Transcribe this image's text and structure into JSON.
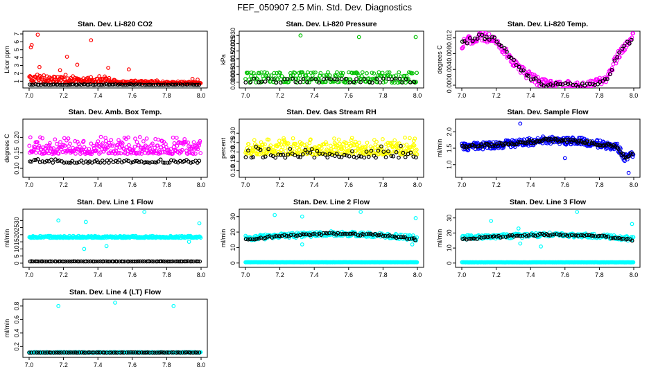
{
  "title": "FEF_050907  2.5 Min. Std. Dev. Diagnostics",
  "colors": {
    "red": "#ff0000",
    "green": "#00c000",
    "magenta": "#ff00ff",
    "yellow": "#ffff00",
    "blue": "#0000ff",
    "cyan": "#00ffff",
    "black": "#000000"
  },
  "chart_data": [
    {
      "type": "scatter",
      "title": "Stan. Dev. Li-820 CO2",
      "ylabel": "Licor ppm",
      "xlim": [
        7.0,
        8.0
      ],
      "xticks": [
        "7.0",
        "7.2",
        "7.4",
        "7.6",
        "7.8",
        "8.0"
      ],
      "ylim": [
        0.5,
        7.0
      ],
      "yticks": [
        "1",
        "2",
        "3",
        "4",
        "5",
        "6",
        "7"
      ],
      "series": [
        {
          "name": "primary",
          "color": "#ff0000",
          "x_range": [
            7.0,
            8.0
          ],
          "points": 260,
          "base": [
            1.0,
            1.0,
            0.8,
            0.75
          ],
          "spread": [
            1.1,
            0.8,
            0.35,
            0.3
          ],
          "outliers": [
            [
              7.01,
              5.3
            ],
            [
              7.015,
              5.6
            ],
            [
              7.05,
              6.9
            ],
            [
              7.06,
              2.8
            ],
            [
              7.22,
              4.1
            ],
            [
              7.18,
              2.4
            ],
            [
              7.36,
              6.2
            ],
            [
              7.28,
              3.1
            ],
            [
              7.46,
              2.7
            ],
            [
              7.58,
              2.5
            ],
            [
              7.95,
              1.3
            ],
            [
              7.98,
              1.2
            ]
          ]
        },
        {
          "name": "reference",
          "color": "#000000",
          "x_range": [
            7.0,
            8.0
          ],
          "points": 90,
          "base": [
            0.55,
            0.55,
            0.55,
            0.55
          ],
          "spread": [
            0.08,
            0.08,
            0.08,
            0.08
          ],
          "outliers": []
        }
      ]
    },
    {
      "type": "scatter",
      "title": "Stan. Dev. Li-820 Pressure",
      "ylabel": "kPa",
      "xlim": [
        7.0,
        8.0
      ],
      "xticks": [
        "7.0",
        "7.2",
        "7.4",
        "7.6",
        "7.8",
        "8.0"
      ],
      "ylim": [
        -0.002,
        0.031
      ],
      "yticks": [
        "0.000",
        "0.005",
        "0.010",
        "0.015",
        "0.020",
        "0.025",
        "0.030"
      ],
      "series": [
        {
          "name": "primary",
          "color": "#00c000",
          "x_range": [
            7.0,
            8.0
          ],
          "points": 200,
          "levels": [
            0.0,
            0.002,
            0.004,
            0.006
          ],
          "jitter": 0.0004,
          "outliers": [
            [
              7.32,
              0.03
            ],
            [
              7.66,
              0.029
            ],
            [
              7.99,
              0.029
            ]
          ]
        },
        {
          "name": "reference",
          "color": "#000000",
          "x_range": [
            7.0,
            8.0
          ],
          "points": 45,
          "levels": [
            0.0,
            0.002
          ],
          "jitter": 0.0003,
          "outliers": []
        }
      ]
    },
    {
      "type": "scatter",
      "title": "Stan. Dev. Li-820 Temp.",
      "ylabel": "degrees C",
      "xlim": [
        7.0,
        8.0
      ],
      "xticks": [
        "7.0",
        "7.2",
        "7.4",
        "7.6",
        "7.8",
        "8.0"
      ],
      "ylim": [
        0.0,
        0.013
      ],
      "yticks": [
        "0.000",
        "0.004",
        "0.008",
        "0.012"
      ],
      "series": [
        {
          "name": "primary",
          "color": "#ff00ff",
          "x_range": [
            7.0,
            8.0
          ],
          "points": 240,
          "curve": [
            [
              7.0,
              0.0105
            ],
            [
              7.1,
              0.0125
            ],
            [
              7.2,
              0.0115
            ],
            [
              7.3,
              0.006
            ],
            [
              7.4,
              0.002
            ],
            [
              7.5,
              0.0
            ],
            [
              7.75,
              0.0
            ],
            [
              7.85,
              0.002
            ],
            [
              7.9,
              0.007
            ],
            [
              8.0,
              0.0125
            ]
          ],
          "jitter": 0.0012,
          "outliers": []
        },
        {
          "name": "reference",
          "color": "#000000",
          "x_range": [
            7.0,
            8.0
          ],
          "points": 70,
          "curve": [
            [
              7.0,
              0.0105
            ],
            [
              7.1,
              0.0125
            ],
            [
              7.2,
              0.0115
            ],
            [
              7.3,
              0.006
            ],
            [
              7.4,
              0.002
            ],
            [
              7.5,
              0.0
            ],
            [
              7.75,
              0.0
            ],
            [
              7.85,
              0.002
            ],
            [
              7.9,
              0.007
            ],
            [
              8.0,
              0.0125
            ]
          ],
          "jitter": 0.0006,
          "outliers": []
        }
      ]
    },
    {
      "type": "scatter",
      "title": "Stan. Dev. Amb. Box Temp.",
      "ylabel": "degrees C",
      "xlim": [
        7.0,
        8.0
      ],
      "xticks": [
        "7.0",
        "7.2",
        "7.4",
        "7.6",
        "7.8",
        "8.0"
      ],
      "ylim": [
        0.08,
        0.25
      ],
      "yticks": [
        "0.10",
        "0.15",
        "0.20"
      ],
      "series": [
        {
          "name": "primary",
          "color": "#ff00ff",
          "x_range": [
            7.0,
            8.0
          ],
          "points": 300,
          "base": [
            0.155,
            0.155,
            0.155,
            0.155
          ],
          "spread": [
            0.055,
            0.055,
            0.055,
            0.055
          ],
          "outliers": []
        },
        {
          "name": "reference",
          "color": "#000000",
          "x_range": [
            7.0,
            8.0
          ],
          "points": 80,
          "base": [
            0.12,
            0.12,
            0.12,
            0.12
          ],
          "spread": [
            0.012,
            0.012,
            0.012,
            0.012
          ],
          "outliers": []
        }
      ]
    },
    {
      "type": "scatter",
      "title": "Stan. Dev. Gas Stream RH",
      "ylabel": "percent",
      "xlim": [
        7.0,
        8.0
      ],
      "xticks": [
        "7.0",
        "7.2",
        "7.4",
        "7.6",
        "7.8",
        "8.0"
      ],
      "ylim": [
        0.08,
        0.36
      ],
      "yticks": [
        "0.10",
        "0.15",
        "0.20",
        "0.25",
        "0.30"
      ],
      "series": [
        {
          "name": "primary",
          "color": "#ffff00",
          "x_range": [
            7.0,
            8.0
          ],
          "points": 330,
          "base": [
            0.2,
            0.2,
            0.2,
            0.2
          ],
          "spread": [
            0.09,
            0.09,
            0.09,
            0.09
          ],
          "outliers": []
        },
        {
          "name": "reference",
          "color": "#000000",
          "x_range": [
            7.0,
            8.0
          ],
          "points": 70,
          "base": [
            0.18,
            0.18,
            0.18,
            0.18
          ],
          "spread": [
            0.07,
            0.07,
            0.07,
            0.07
          ],
          "outliers": []
        }
      ]
    },
    {
      "type": "scatter",
      "title": "Stan. Dev. Sample Flow",
      "ylabel": "ml/min",
      "xlim": [
        7.0,
        8.0
      ],
      "xticks": [
        "7.0",
        "7.2",
        "7.4",
        "7.6",
        "7.8",
        "8.0"
      ],
      "ylim": [
        0.7,
        2.3
      ],
      "yticks": [
        "1.0",
        "1.5",
        "2.0"
      ],
      "series": [
        {
          "name": "primary",
          "color": "#0000ff",
          "x_range": [
            7.0,
            8.0
          ],
          "points": 320,
          "curve": [
            [
              7.0,
              1.55
            ],
            [
              7.2,
              1.6
            ],
            [
              7.5,
              1.75
            ],
            [
              7.7,
              1.7
            ],
            [
              7.9,
              1.55
            ],
            [
              7.95,
              1.2
            ],
            [
              8.0,
              1.3
            ]
          ],
          "jitter": 0.12,
          "outliers": [
            [
              7.34,
              2.25
            ],
            [
              7.97,
              0.75
            ],
            [
              7.6,
              1.2
            ]
          ]
        },
        {
          "name": "reference",
          "color": "#000000",
          "x_range": [
            7.0,
            8.0
          ],
          "points": 110,
          "curve": [
            [
              7.0,
              1.55
            ],
            [
              7.2,
              1.6
            ],
            [
              7.5,
              1.75
            ],
            [
              7.7,
              1.7
            ],
            [
              7.9,
              1.55
            ],
            [
              7.95,
              1.2
            ],
            [
              8.0,
              1.35
            ]
          ],
          "jitter": 0.05,
          "outliers": []
        }
      ]
    },
    {
      "type": "scatter",
      "title": "Stan. Dev. Line 1 Flow",
      "ylabel": "ml/min",
      "xlim": [
        7.0,
        8.0
      ],
      "xticks": [
        "7.0",
        "7.2",
        "7.4",
        "7.6",
        "7.8",
        "8.0"
      ],
      "ylim": [
        -1,
        36
      ],
      "yticks": [
        "0",
        "5",
        "10",
        "15",
        "20",
        "25",
        "30"
      ],
      "series": [
        {
          "name": "primary",
          "color": "#00ffff",
          "x_range": [
            7.0,
            8.0
          ],
          "points": 320,
          "base": [
            18,
            18,
            18,
            18
          ],
          "spread": [
            1.4,
            1.4,
            1.4,
            1.4
          ],
          "outliers": [
            [
              7.17,
              30
            ],
            [
              7.33,
              29
            ],
            [
              7.67,
              36
            ],
            [
              7.99,
              28
            ],
            [
              7.45,
              12
            ],
            [
              7.32,
              10
            ],
            [
              7.93,
              15
            ]
          ]
        },
        {
          "name": "reference",
          "color": "#000000",
          "x_range": [
            7.0,
            8.0
          ],
          "points": 90,
          "base": [
            1.2,
            1.2,
            1.2,
            1.2
          ],
          "spread": [
            0.1,
            0.1,
            0.1,
            0.1
          ],
          "outliers": []
        }
      ]
    },
    {
      "type": "scatter",
      "title": "Stan. Dev. Line 2 Flow",
      "ylabel": "ml/min",
      "xlim": [
        7.0,
        8.0
      ],
      "xticks": [
        "7.0",
        "7.2",
        "7.4",
        "7.6",
        "7.8",
        "8.0"
      ],
      "ylim": [
        -1,
        33
      ],
      "yticks": [
        "0",
        "10",
        "20",
        "30"
      ],
      "series": [
        {
          "name": "primary",
          "color": "#00ffff",
          "x_range": [
            7.0,
            8.0
          ],
          "points": 300,
          "base": [
            0.5,
            0.5,
            0.5,
            0.5
          ],
          "spread": [
            0.1,
            0.1,
            0.1,
            0.1
          ],
          "outliers": []
        },
        {
          "name": "secondary",
          "color": "#00ffff",
          "x_range": [
            7.0,
            8.0
          ],
          "points": 260,
          "curve": [
            [
              7.0,
              16
            ],
            [
              7.2,
              17.5
            ],
            [
              7.5,
              19
            ],
            [
              7.8,
              18
            ],
            [
              8.0,
              16
            ]
          ],
          "jitter": 1.6,
          "outliers": [
            [
              7.17,
              31
            ],
            [
              7.33,
              30
            ],
            [
              7.67,
              33
            ],
            [
              7.99,
              29
            ],
            [
              7.33,
              12
            ],
            [
              7.97,
              12
            ]
          ]
        },
        {
          "name": "reference",
          "color": "#000000",
          "x_range": [
            7.0,
            8.0
          ],
          "points": 80,
          "curve": [
            [
              7.0,
              15
            ],
            [
              7.2,
              17.5
            ],
            [
              7.5,
              19
            ],
            [
              7.8,
              18
            ],
            [
              8.0,
              15
            ]
          ],
          "jitter": 0.6,
          "outliers": []
        }
      ]
    },
    {
      "type": "scatter",
      "title": "Stan. Dev. Line 3 Flow",
      "ylabel": "ml/min",
      "xlim": [
        7.0,
        8.0
      ],
      "xticks": [
        "7.0",
        "7.2",
        "7.4",
        "7.6",
        "7.8",
        "8.0"
      ],
      "ylim": [
        -1,
        34
      ],
      "yticks": [
        "0",
        "10",
        "20",
        "30"
      ],
      "series": [
        {
          "name": "primary",
          "color": "#00ffff",
          "x_range": [
            7.0,
            8.0
          ],
          "points": 300,
          "base": [
            0.5,
            0.5,
            0.5,
            0.5
          ],
          "spread": [
            0.1,
            0.1,
            0.1,
            0.1
          ],
          "outliers": []
        },
        {
          "name": "secondary",
          "color": "#00ffff",
          "x_range": [
            7.0,
            8.0
          ],
          "points": 260,
          "curve": [
            [
              7.0,
              17
            ],
            [
              7.3,
              18
            ],
            [
              7.5,
              19
            ],
            [
              7.8,
              18
            ],
            [
              8.0,
              16
            ]
          ],
          "jitter": 1.5,
          "outliers": [
            [
              7.17,
              28
            ],
            [
              7.33,
              23
            ],
            [
              7.67,
              34
            ],
            [
              7.99,
              26
            ],
            [
              7.34,
              13
            ],
            [
              7.46,
              11
            ]
          ]
        },
        {
          "name": "reference",
          "color": "#000000",
          "x_range": [
            7.0,
            8.0
          ],
          "points": 80,
          "curve": [
            [
              7.0,
              16
            ],
            [
              7.3,
              18
            ],
            [
              7.5,
              19
            ],
            [
              7.8,
              18
            ],
            [
              8.0,
              15
            ]
          ],
          "jitter": 0.6,
          "outliers": []
        }
      ]
    },
    {
      "type": "scatter",
      "title": "Stan. Dev. Line 4 (LT) Flow",
      "ylabel": "ml/min",
      "xlim": [
        7.0,
        8.0
      ],
      "xticks": [
        "7.0",
        "7.2",
        "7.4",
        "7.6",
        "7.8",
        "8.0"
      ],
      "ylim": [
        0.08,
        0.86
      ],
      "yticks": [
        "0.2",
        "0.4",
        "0.6",
        "0.8"
      ],
      "series": [
        {
          "name": "primary",
          "color": "#00ffff",
          "x_range": [
            7.0,
            8.0
          ],
          "points": 300,
          "base": [
            0.11,
            0.11,
            0.11,
            0.11
          ],
          "spread": [
            0.012,
            0.012,
            0.012,
            0.012
          ],
          "outliers": [
            [
              7.17,
              0.8
            ],
            [
              7.5,
              0.85
            ],
            [
              7.84,
              0.8
            ]
          ]
        },
        {
          "name": "reference",
          "color": "#000000",
          "x_range": [
            7.0,
            8.0
          ],
          "points": 80,
          "base": [
            0.11,
            0.11,
            0.11,
            0.11
          ],
          "spread": [
            0.004,
            0.004,
            0.004,
            0.004
          ],
          "outliers": []
        }
      ]
    }
  ]
}
